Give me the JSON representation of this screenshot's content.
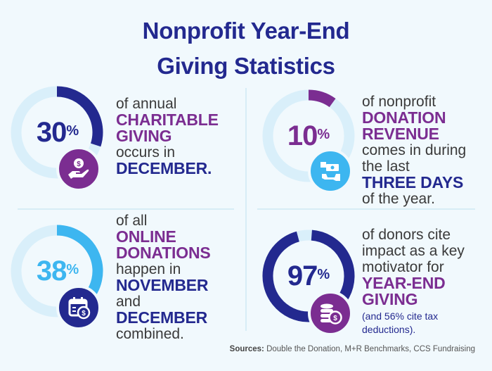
{
  "title": {
    "line1": "Nonprofit Year-End",
    "line2": "Giving Statistics"
  },
  "colors": {
    "navy": "#23298f",
    "purple": "#7b2d91",
    "sky": "#3db6f0",
    "track": "#d9effa",
    "background": "#f1f9fd"
  },
  "stats": [
    {
      "value": 30,
      "value_label": "30",
      "unit": "%",
      "ring_color": "#23298f",
      "icon": "hand-holding-coin-icon",
      "icon_bg": "#7b2d91",
      "lines": [
        "of annual",
        "CHARITABLE",
        "GIVING",
        "occurs in",
        "DECEMBER."
      ]
    },
    {
      "value": 10,
      "value_label": "10",
      "unit": "%",
      "ring_color": "#7b2d91",
      "icon": "cash-hand-icon",
      "icon_bg": "#3db6f0",
      "lines": [
        "of nonprofit",
        "DONATION",
        "REVENUE",
        "comes in during",
        "the last",
        "THREE DAYS",
        "of the year."
      ]
    },
    {
      "value": 38,
      "value_label": "38",
      "unit": "%",
      "ring_color": "#3db6f0",
      "icon": "calendar-dollar-icon",
      "icon_bg": "#23298f",
      "lines": [
        "of all",
        "ONLINE",
        "DONATIONS",
        "happen in",
        "NOVEMBER",
        "and",
        "DECEMBER",
        "combined."
      ]
    },
    {
      "value": 97,
      "value_label": "97",
      "unit": "%",
      "ring_color": "#23298f",
      "icon": "coin-stack-icon",
      "icon_bg": "#7b2d91",
      "lines": [
        "of donors cite",
        "impact as a key",
        "motivator for",
        "YEAR-END",
        "GIVING",
        "(and 56% cite tax",
        "deductions)."
      ]
    }
  ],
  "sources": {
    "label": "Sources:",
    "text": " Double the Donation, M+R Benchmarks, CCS Fundraising"
  }
}
